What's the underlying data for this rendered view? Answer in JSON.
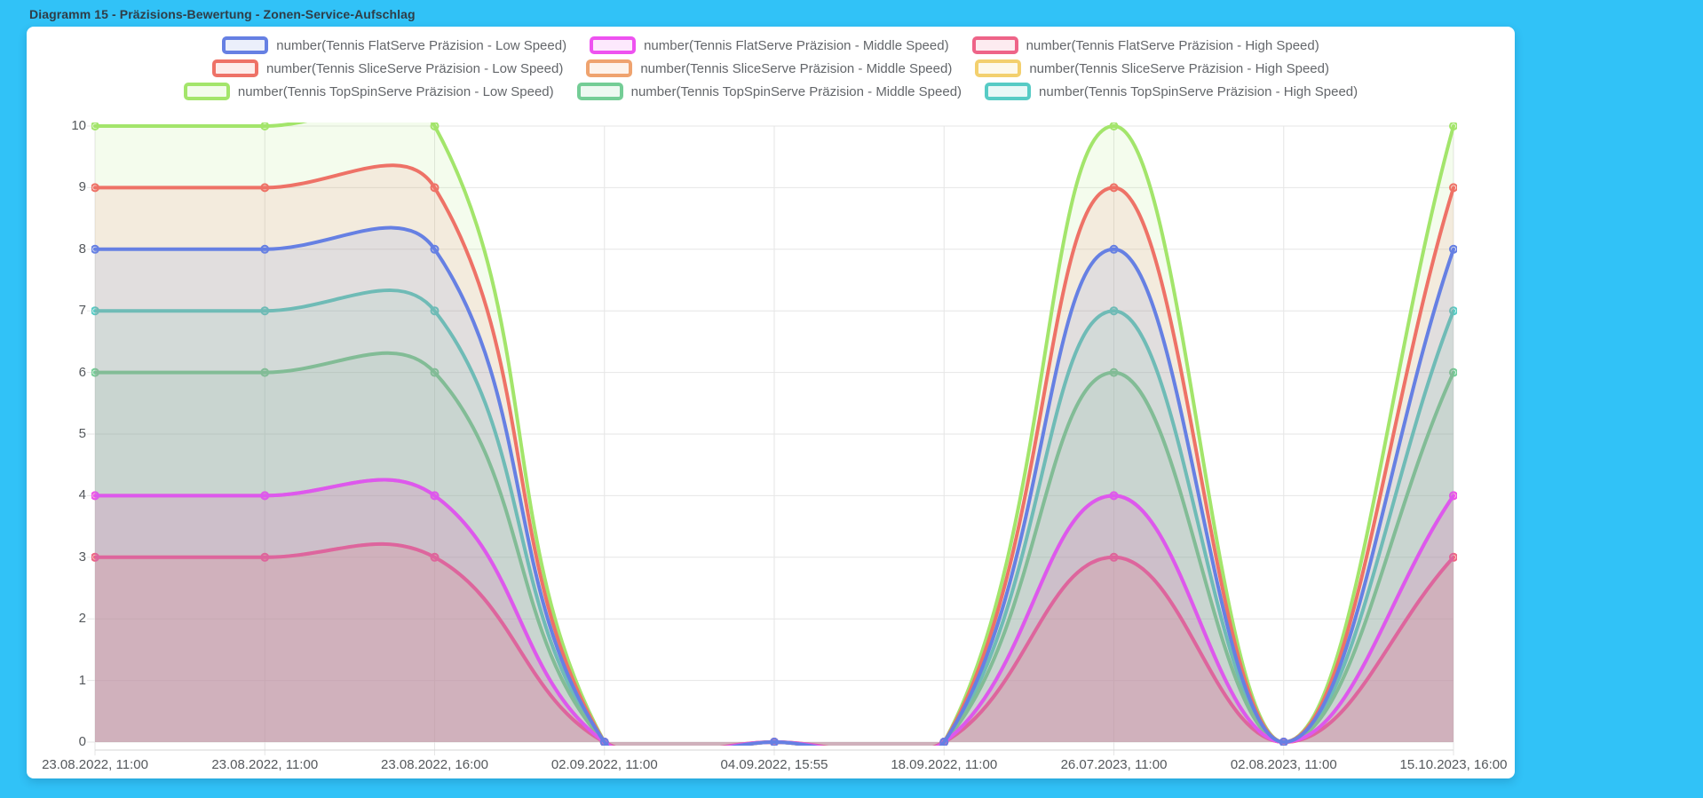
{
  "window": {
    "title": "Diagramm 15 - Präzisions-Bewertung - Zonen-Service-Aufschlag"
  },
  "colors": {
    "background": "#31c2f7",
    "panel": "#ffffff",
    "grid": "#e6e6e6",
    "axis_border": "#d6d6d6",
    "tick_text": "#54585c",
    "legend_text": "#63666a",
    "title_text": "#2f3d47"
  },
  "chart_data": {
    "type": "area",
    "title": "Diagramm 15 - Präzisions-Bewertung - Zonen-Service-Aufschlag",
    "xlabel": "",
    "ylabel": "",
    "ylim": [
      0,
      10
    ],
    "yticks": [
      0,
      1,
      2,
      3,
      4,
      5,
      6,
      7,
      8,
      9,
      10
    ],
    "grid": true,
    "legend_position": "top",
    "line_style": "smooth-spline, tension 0.4, filled to zero, point markers",
    "categories": [
      "23.08.2022, 11:00",
      "23.08.2022, 11:00",
      "23.08.2022, 16:00",
      "02.09.2022, 11:00",
      "04.09.2022, 15:55",
      "18.09.2022, 11:00",
      "26.07.2023, 11:00",
      "02.08.2023, 11:00",
      "15.10.2023, 16:00"
    ],
    "series": [
      {
        "name": "number(Tennis FlatServe Präzision - Low Speed)",
        "color": "#6680e3",
        "values": [
          8,
          8,
          8,
          0,
          0,
          0,
          8,
          0,
          8
        ]
      },
      {
        "name": "number(Tennis FlatServe Präzision - Middle Speed)",
        "color": "#ee52f0",
        "values": [
          4,
          4,
          4,
          0,
          0,
          0,
          4,
          0,
          4
        ]
      },
      {
        "name": "number(Tennis FlatServe Präzision - High Speed)",
        "color": "#ee6488",
        "values": [
          3,
          3,
          3,
          0,
          0,
          0,
          3,
          0,
          3
        ]
      },
      {
        "name": "number(Tennis SliceServe Präzision - Low Speed)",
        "color": "#ee7267",
        "values": [
          9,
          9,
          9,
          0,
          0,
          0,
          9,
          0,
          9
        ]
      },
      {
        "name": "number(Tennis SliceServe Präzision - Middle Speed)",
        "color": "#efa36f",
        "values": [
          4,
          4,
          4,
          0,
          0,
          0,
          4,
          0,
          4
        ]
      },
      {
        "name": "number(Tennis SliceServe Präzision - High Speed)",
        "color": "#f3d06e",
        "values": [
          3,
          3,
          3,
          0,
          0,
          0,
          3,
          0,
          3
        ]
      },
      {
        "name": "number(Tennis TopSpinServe Präzision - Low Speed)",
        "color": "#a3e56b",
        "values": [
          10,
          10,
          10,
          0,
          0,
          0,
          10,
          0,
          10
        ]
      },
      {
        "name": "number(Tennis TopSpinServe Präzision - Middle Speed)",
        "color": "#74cd96",
        "values": [
          6,
          6,
          6,
          0,
          0,
          0,
          6,
          0,
          6
        ]
      },
      {
        "name": "number(Tennis TopSpinServe Präzision - High Speed)",
        "color": "#57cbc5",
        "values": [
          7,
          7,
          7,
          0,
          0,
          0,
          7,
          0,
          7
        ]
      }
    ]
  }
}
